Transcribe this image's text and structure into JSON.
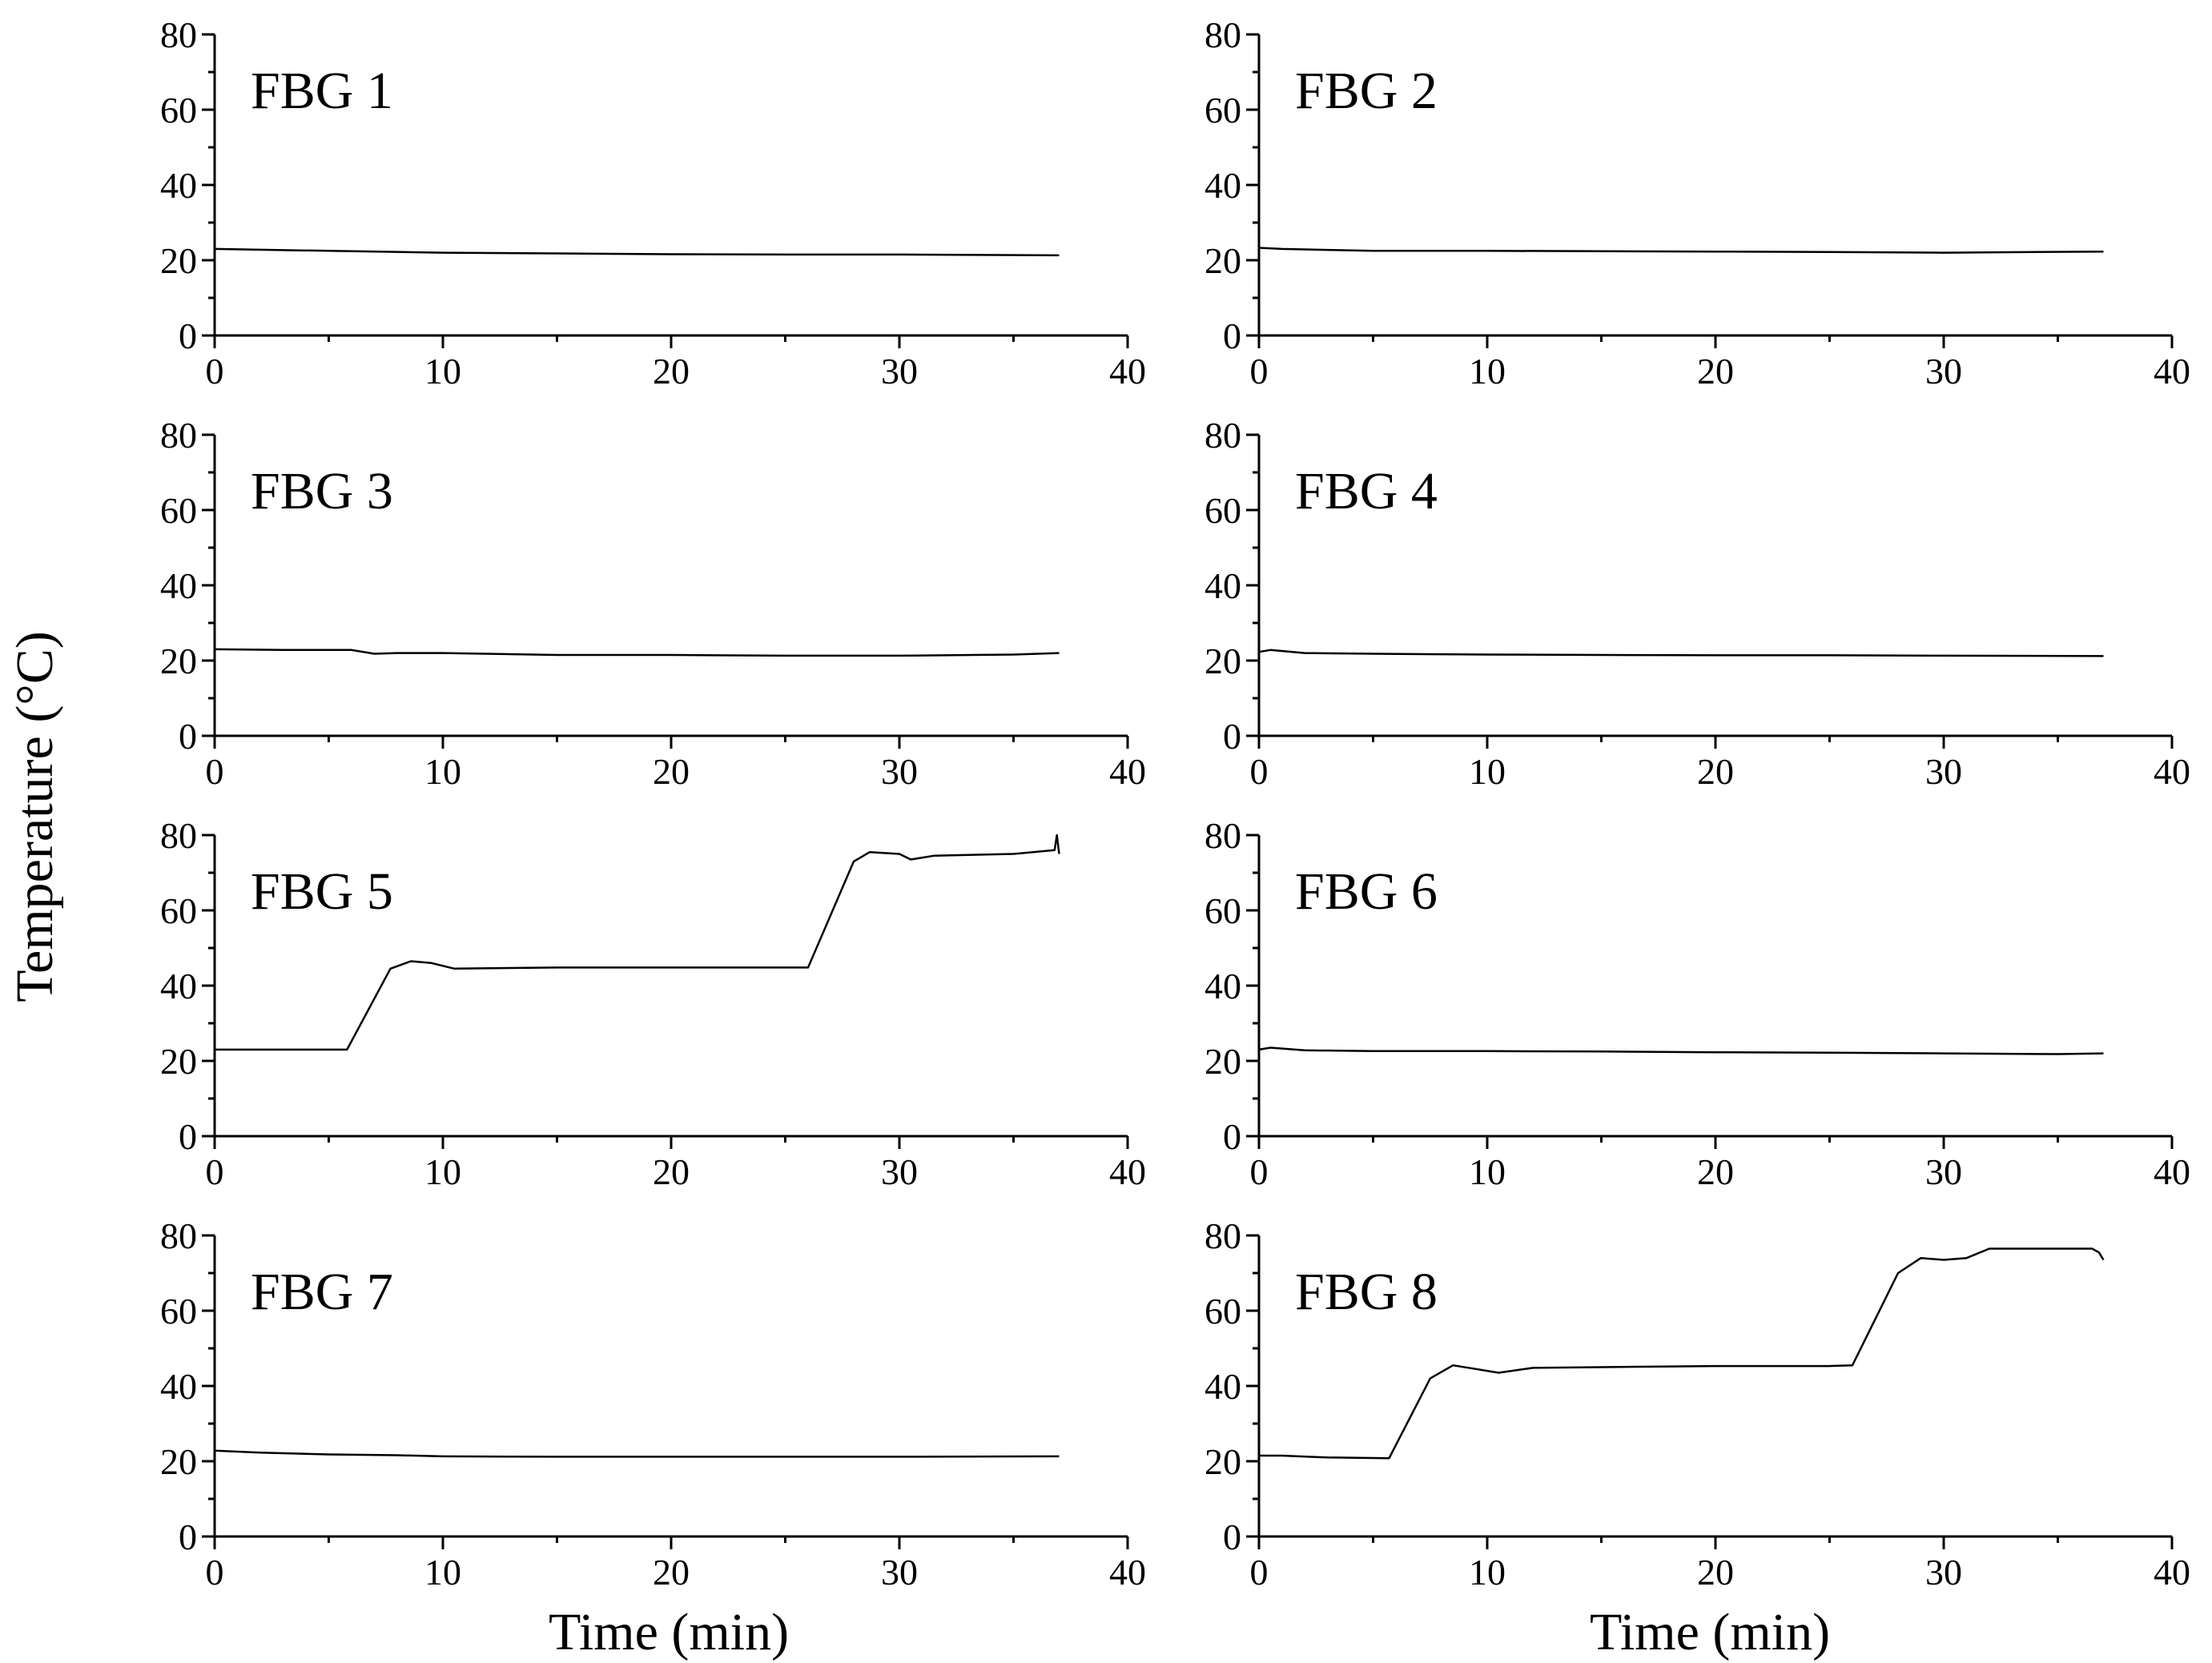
{
  "figure": {
    "ylabel": "Temperature (°C)",
    "xlabel": "Time (min)"
  },
  "chart_data": [
    {
      "type": "line",
      "label": "FBG 1",
      "xlim": [
        0,
        40
      ],
      "ylim": [
        0,
        80
      ],
      "xticks": [
        0,
        10,
        20,
        30,
        40
      ],
      "yticks": [
        0,
        20,
        40,
        60,
        80
      ],
      "show_xlabel": false,
      "series": [
        {
          "x": [
            0,
            5,
            10,
            15,
            20,
            25,
            30,
            37
          ],
          "y": [
            23,
            22.5,
            22,
            21.8,
            21.6,
            21.5,
            21.5,
            21.3
          ]
        }
      ]
    },
    {
      "type": "line",
      "label": "FBG 2",
      "xlim": [
        0,
        40
      ],
      "ylim": [
        0,
        80
      ],
      "xticks": [
        0,
        10,
        20,
        30,
        40
      ],
      "yticks": [
        0,
        20,
        40,
        60,
        80
      ],
      "show_xlabel": false,
      "series": [
        {
          "x": [
            0,
            1,
            5,
            10,
            15,
            20,
            25,
            30,
            37
          ],
          "y": [
            23.3,
            23,
            22.5,
            22.5,
            22.4,
            22.3,
            22.2,
            22,
            22.3
          ]
        }
      ]
    },
    {
      "type": "line",
      "label": "FBG 3",
      "xlim": [
        0,
        40
      ],
      "ylim": [
        0,
        80
      ],
      "xticks": [
        0,
        10,
        20,
        30,
        40
      ],
      "yticks": [
        0,
        20,
        40,
        60,
        80
      ],
      "show_xlabel": false,
      "series": [
        {
          "x": [
            0,
            3,
            6,
            7,
            8,
            10,
            15,
            20,
            25,
            30,
            35,
            37
          ],
          "y": [
            23,
            22.8,
            22.8,
            21.8,
            22,
            22,
            21.5,
            21.5,
            21.3,
            21.3,
            21.6,
            22
          ]
        }
      ]
    },
    {
      "type": "line",
      "label": "FBG 4",
      "xlim": [
        0,
        40
      ],
      "ylim": [
        0,
        80
      ],
      "xticks": [
        0,
        10,
        20,
        30,
        40
      ],
      "yticks": [
        0,
        20,
        40,
        60,
        80
      ],
      "show_xlabel": false,
      "series": [
        {
          "x": [
            0,
            0.5,
            2,
            5,
            10,
            15,
            20,
            25,
            30,
            37
          ],
          "y": [
            22.3,
            22.8,
            22,
            21.8,
            21.6,
            21.5,
            21.4,
            21.4,
            21.3,
            21.2
          ]
        }
      ]
    },
    {
      "type": "line",
      "label": "FBG 5",
      "xlim": [
        0,
        40
      ],
      "ylim": [
        0,
        80
      ],
      "xticks": [
        0,
        10,
        20,
        30,
        40
      ],
      "yticks": [
        0,
        20,
        40,
        60,
        80
      ],
      "show_xlabel": false,
      "series": [
        {
          "x": [
            0,
            5.8,
            7.7,
            8.6,
            9.5,
            10.5,
            15,
            20,
            25,
            26,
            28,
            28.7,
            30,
            30.5,
            31.5,
            35,
            36.8,
            36.9,
            37
          ],
          "y": [
            23,
            23,
            44.5,
            46.5,
            46,
            44.5,
            44.8,
            44.8,
            44.8,
            44.8,
            73,
            75.5,
            75,
            73.5,
            74.5,
            75,
            76,
            80,
            75
          ]
        }
      ]
    },
    {
      "type": "line",
      "label": "FBG 6",
      "xlim": [
        0,
        40
      ],
      "ylim": [
        0,
        80
      ],
      "xticks": [
        0,
        10,
        20,
        30,
        40
      ],
      "yticks": [
        0,
        20,
        40,
        60,
        80
      ],
      "show_xlabel": false,
      "series": [
        {
          "x": [
            0,
            0.5,
            2,
            5,
            10,
            15,
            20,
            25,
            30,
            35,
            37
          ],
          "y": [
            23,
            23.5,
            22.8,
            22.6,
            22.6,
            22.5,
            22.3,
            22.2,
            22,
            21.8,
            22
          ]
        }
      ]
    },
    {
      "type": "line",
      "label": "FBG 7",
      "xlim": [
        0,
        40
      ],
      "ylim": [
        0,
        80
      ],
      "xticks": [
        0,
        10,
        20,
        30,
        40
      ],
      "yticks": [
        0,
        20,
        40,
        60,
        80
      ],
      "show_xlabel": true,
      "series": [
        {
          "x": [
            0,
            2,
            5,
            8,
            10,
            15,
            20,
            25,
            30,
            37
          ],
          "y": [
            22.8,
            22.3,
            21.8,
            21.6,
            21.3,
            21.2,
            21.2,
            21.2,
            21.2,
            21.3
          ]
        }
      ]
    },
    {
      "type": "line",
      "label": "FBG 8",
      "xlim": [
        0,
        40
      ],
      "ylim": [
        0,
        80
      ],
      "xticks": [
        0,
        10,
        20,
        30,
        40
      ],
      "yticks": [
        0,
        20,
        40,
        60,
        80
      ],
      "show_xlabel": true,
      "series": [
        {
          "x": [
            0,
            1,
            3,
            5.7,
            7.5,
            8.5,
            9.5,
            10.5,
            12,
            15,
            20,
            25,
            26,
            28,
            29,
            30,
            31,
            32,
            35,
            36.5,
            36.8,
            37
          ],
          "y": [
            21.5,
            21.5,
            21,
            20.8,
            42,
            45.5,
            44.5,
            43.5,
            44.8,
            45,
            45.3,
            45.3,
            45.5,
            70,
            74,
            73.5,
            74,
            76.5,
            76.5,
            76.5,
            75.5,
            73.5
          ]
        }
      ]
    }
  ]
}
